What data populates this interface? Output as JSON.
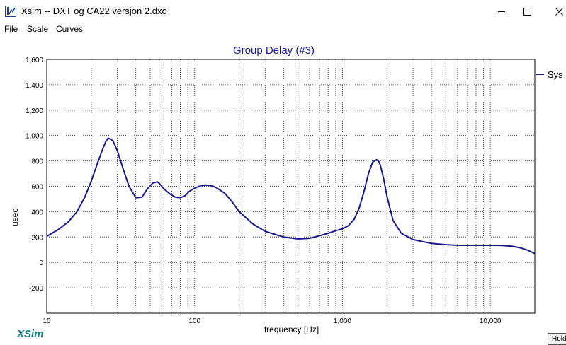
{
  "window": {
    "title": "Xsim -- DXT og CA22 versjon 2.dxo",
    "icon": "xsim-app-icon"
  },
  "menu": {
    "items": [
      "File",
      "Scale",
      "Curves"
    ]
  },
  "logo": "XSim",
  "hold_button": "Hold",
  "chart_data": {
    "type": "line",
    "title": "Group Delay (#3)",
    "xlabel": "frequency [Hz]",
    "ylabel": "usec",
    "xscale": "log",
    "xlim": [
      10,
      20000
    ],
    "ylim": [
      -400,
      1600
    ],
    "xticks": [
      10,
      100,
      1000,
      10000
    ],
    "xtick_labels": [
      "10",
      "100",
      "1,000",
      "10,000"
    ],
    "yticks": [
      -200,
      0,
      200,
      400,
      600,
      800,
      1000,
      1200,
      1400,
      1600
    ],
    "ytick_labels": [
      "-200",
      "0",
      "200",
      "400",
      "600",
      "800",
      "1,000",
      "1,200",
      "1,400",
      "1,600"
    ],
    "grid": "vertical dotted at decade multiples, horizontal dotted at each y tick",
    "legend_placement": "right",
    "series": [
      {
        "name": "Sys",
        "color": "#1a1a8c",
        "x": [
          10,
          12,
          14,
          16,
          18,
          20,
          22,
          24,
          25,
          26,
          28,
          30,
          33,
          36,
          40,
          44,
          48,
          52,
          56,
          58,
          62,
          68,
          74,
          80,
          86,
          92,
          100,
          110,
          120,
          130,
          140,
          160,
          180,
          200,
          250,
          300,
          400,
          500,
          600,
          700,
          800,
          900,
          1000,
          1100,
          1200,
          1300,
          1400,
          1500,
          1600,
          1700,
          1750,
          1800,
          1900,
          2000,
          2200,
          2500,
          3000,
          4000,
          5000,
          6000,
          8000,
          10000,
          12000,
          14000,
          16000,
          18000,
          20000
        ],
        "values": [
          205,
          260,
          320,
          400,
          510,
          640,
          780,
          900,
          950,
          980,
          960,
          880,
          730,
          600,
          510,
          515,
          580,
          625,
          635,
          620,
          580,
          540,
          515,
          510,
          525,
          560,
          585,
          605,
          610,
          605,
          590,
          545,
          475,
          400,
          300,
          245,
          200,
          185,
          190,
          210,
          230,
          250,
          265,
          290,
          340,
          430,
          560,
          700,
          790,
          810,
          800,
          770,
          660,
          520,
          330,
          230,
          180,
          150,
          140,
          135,
          135,
          135,
          133,
          128,
          115,
          95,
          70
        ]
      }
    ]
  }
}
